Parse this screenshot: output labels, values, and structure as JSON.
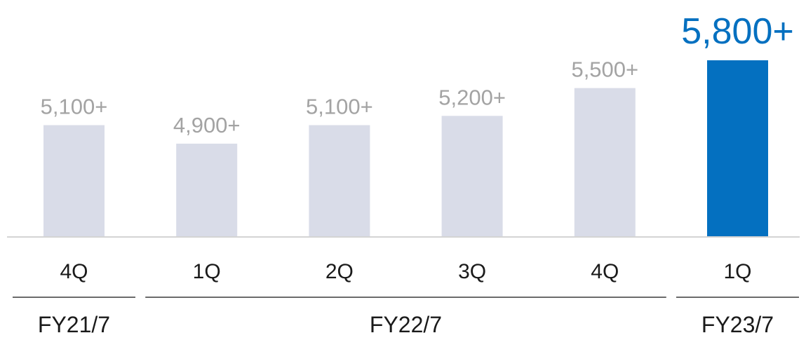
{
  "chart_data": {
    "type": "bar",
    "categories": [
      "4Q",
      "1Q",
      "2Q",
      "3Q",
      "4Q",
      "1Q"
    ],
    "values": [
      5100,
      4900,
      5100,
      5200,
      5500,
      5800
    ],
    "data_labels": [
      "5,100+",
      "4,900+",
      "5,100+",
      "5,200+",
      "5,500+",
      "5,800+"
    ],
    "highlight_index": 5,
    "groups": [
      {
        "label": "FY21/7",
        "categories": [
          0
        ]
      },
      {
        "label": "FY22/7",
        "categories": [
          1,
          2,
          3,
          4
        ]
      },
      {
        "label": "FY23/7",
        "categories": [
          5
        ]
      }
    ],
    "ylim": [
      3900,
      5800
    ],
    "grid": false,
    "legend": "none",
    "title": "",
    "xlabel": "",
    "ylabel": ""
  },
  "colors": {
    "bar": "#d9dce8",
    "highlight_bar": "#0470c0",
    "label": "#a3a3a3",
    "highlight_label": "#0470c0",
    "category_text": "#1a1a1a",
    "axis": "#d4d4d4",
    "group_line": "#3a3a3a"
  }
}
